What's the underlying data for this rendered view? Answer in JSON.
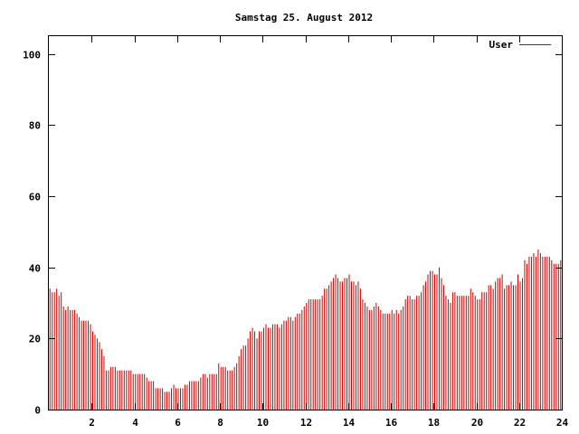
{
  "chart_data": {
    "type": "bar",
    "title": "Samstag 25. August 2012",
    "xlabel": "",
    "ylabel": "",
    "xlim": [
      0,
      24
    ],
    "ylim": [
      0,
      105
    ],
    "xticks": [
      2,
      4,
      6,
      8,
      10,
      12,
      14,
      16,
      18,
      20,
      22,
      24
    ],
    "xtick_labels": [
      "2",
      "4",
      "6",
      "8",
      "10",
      "12",
      "14",
      "16",
      "18",
      "20",
      "22",
      "24"
    ],
    "yticks": [
      0,
      20,
      40,
      60,
      80,
      100
    ],
    "ytick_labels": [
      "0",
      "20",
      "40",
      "60",
      "80",
      "100"
    ],
    "grid": false,
    "legend_position": "top-right",
    "bar_color": "#cc0000",
    "series": [
      {
        "name": "User",
        "values": [
          34,
          33,
          33,
          34,
          32,
          33,
          29,
          28,
          29,
          28,
          28,
          28,
          27,
          26,
          25,
          25,
          25,
          25,
          24,
          22,
          21,
          20,
          19,
          17,
          15,
          11,
          11,
          12,
          12,
          12,
          11,
          11,
          11,
          11,
          11,
          11,
          11,
          10,
          10,
          10,
          10,
          10,
          10,
          9,
          8,
          8,
          8,
          6,
          6,
          6,
          6,
          5,
          5,
          5,
          6,
          7,
          6,
          6,
          6,
          6,
          7,
          7,
          8,
          8,
          8,
          8,
          8,
          9,
          10,
          10,
          9,
          10,
          10,
          10,
          10,
          13,
          12,
          12,
          12,
          11,
          11,
          11,
          12,
          13,
          15,
          17,
          18,
          18,
          20,
          22,
          23,
          22,
          20,
          22,
          22,
          23,
          24,
          23,
          23,
          24,
          24,
          24,
          23,
          24,
          25,
          25,
          26,
          26,
          25,
          26,
          27,
          27,
          28,
          29,
          30,
          31,
          31,
          31,
          31,
          31,
          31,
          32,
          34,
          34,
          35,
          36,
          37,
          38,
          37,
          36,
          36,
          37,
          37,
          38,
          36,
          36,
          35,
          36,
          34,
          31,
          30,
          29,
          28,
          28,
          29,
          30,
          29,
          28,
          27,
          27,
          27,
          27,
          28,
          27,
          28,
          27,
          28,
          29,
          31,
          32,
          32,
          31,
          31,
          32,
          32,
          33,
          35,
          36,
          38,
          39,
          39,
          38,
          38,
          40,
          37,
          35,
          32,
          31,
          30,
          33,
          33,
          32,
          32,
          32,
          32,
          32,
          32,
          34,
          33,
          32,
          31,
          31,
          33,
          33,
          33,
          35,
          35,
          34,
          36,
          37,
          37,
          38,
          34,
          35,
          35,
          36,
          35,
          35,
          38,
          36,
          37,
          42,
          41,
          43,
          43,
          44,
          43,
          45,
          44,
          43,
          43,
          43,
          43,
          42,
          41,
          41,
          41,
          42
        ]
      }
    ]
  }
}
